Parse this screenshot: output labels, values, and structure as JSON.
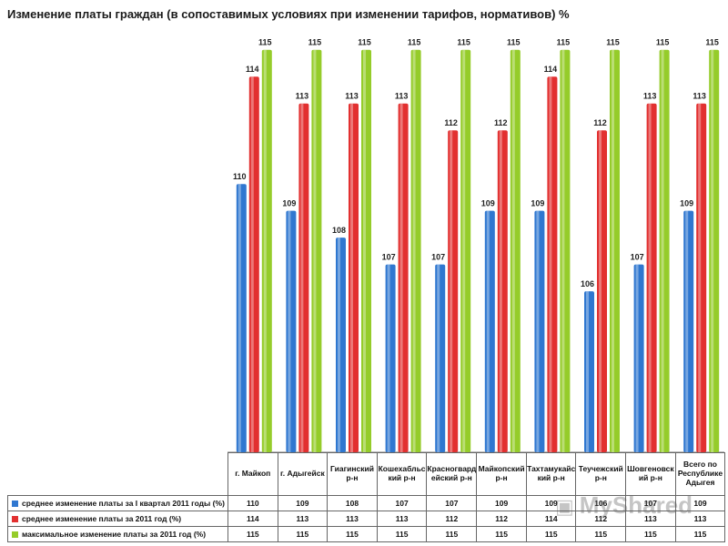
{
  "chart_data": {
    "type": "bar",
    "title": "Изменение платы граждан (в сопоставимых условиях при изменении тарифов, нормативов) %",
    "xlabel": "",
    "ylabel": "",
    "categories": [
      "г. Майкоп",
      "г. Адыгейск",
      "Гиагинский р-н",
      "Кошехабльский р-н",
      "Красногвардейский р-н",
      "Майкопский р-н",
      "Тахтамукайский р-н",
      "Теучежский р-н",
      "Шовгеновский р-н",
      "Всего по Республике Адыгея"
    ],
    "category_lines": [
      [
        "г. Майкоп"
      ],
      [
        "г. Адыгейск"
      ],
      [
        "Гиагинский",
        "р-н"
      ],
      [
        "Кошехабльс",
        "кий р-н"
      ],
      [
        "Красногвард",
        "ейский р-н"
      ],
      [
        "Майкопский",
        "р-н"
      ],
      [
        "Тахтамукайс",
        "кий р-н"
      ],
      [
        "Теучежский",
        "р-н"
      ],
      [
        "Шовгеновск",
        "ий р-н"
      ],
      [
        "Всего по",
        "Республике",
        "Адыгея"
      ]
    ],
    "series": [
      {
        "name": "среднее изменение платы за I квартал 2011 годы (%)",
        "color": "#2f77d0",
        "values": [
          110,
          109,
          108,
          107,
          107,
          109,
          109,
          106,
          107,
          109
        ],
        "labels": [
          "110",
          "109",
          "108",
          "107",
          "107",
          "109",
          "109",
          "106",
          "107",
          "109"
        ]
      },
      {
        "name": "среднее изменение платы за 2011 год (%)",
        "color": "#e23030",
        "values": [
          114,
          113,
          113,
          113,
          112,
          112,
          114,
          112,
          113,
          113
        ],
        "labels": [
          "114",
          "113",
          "113",
          "113",
          "112",
          "112",
          "114",
          "112",
          "113",
          "113"
        ]
      },
      {
        "name": "максимальное изменение платы за 2011 год  (%)",
        "color": "#95cc2a",
        "values": [
          115,
          115,
          115,
          115,
          115,
          115,
          115,
          115,
          115,
          115
        ],
        "labels": [
          "115",
          "115",
          "115",
          "115",
          "115",
          "115",
          "115",
          "115",
          "115",
          "115"
        ]
      }
    ],
    "ylim": [
      100,
      115.5
    ],
    "grid": false,
    "legend": "data-table-below"
  },
  "watermark": {
    "text": "MyShared"
  }
}
